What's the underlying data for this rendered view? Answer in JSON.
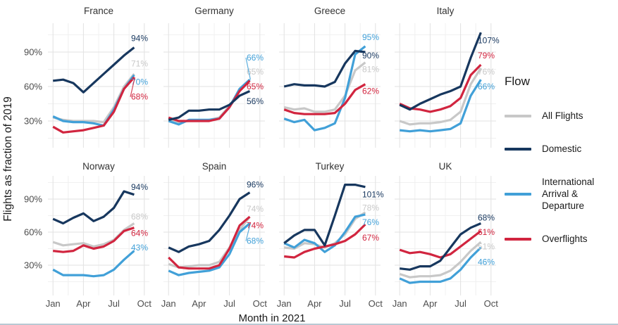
{
  "page": {
    "background": "#ffffff",
    "bottom_border_color": "#b9c9d3"
  },
  "legend": {
    "title": "Flow",
    "items": [
      {
        "label": "All Flights",
        "color": "#c8c8c8"
      },
      {
        "label": "Domestic",
        "color": "#17375e"
      },
      {
        "label": "International Arrival & Departure",
        "color": "#41a0d8"
      },
      {
        "label": "Overflights",
        "color": "#d1253f"
      }
    ]
  },
  "chart_data": {
    "type": "line",
    "title": "",
    "xlabel": "Month in 2021",
    "ylabel": "Flights as fraction of 2019",
    "x": [
      "Jan",
      "Feb",
      "Mar",
      "Apr",
      "May",
      "Jun",
      "Jul",
      "Aug",
      "Sep"
    ],
    "x_axis": {
      "tick_labels": [
        "Jan",
        "Apr",
        "Jul",
        "Oct"
      ],
      "tick_months": [
        1,
        4,
        7,
        10
      ],
      "domain": [
        0.5,
        10.5
      ]
    },
    "y_axis": {
      "tick_values": [
        30,
        60,
        90
      ],
      "tick_labels": [
        "30%",
        "60%",
        "90%"
      ],
      "unit": "% of 2019 flights"
    },
    "grid": true,
    "legend_position": "right",
    "facets": [
      {
        "name": "France",
        "series": [
          {
            "flow": "All Flights",
            "values": [
              33,
              31,
              30,
              30,
              30,
              29,
              42,
              60,
              71
            ],
            "end_label": "71%",
            "label_v": 80
          },
          {
            "flow": "International Arrival & Departure",
            "values": [
              34,
              30,
              29,
              29,
              28,
              26,
              40,
              58,
              70
            ],
            "end_label": "70%",
            "label_v": 64
          },
          {
            "flow": "Overflights",
            "values": [
              25,
              20,
              21,
              22,
              24,
              26,
              38,
              58,
              68
            ],
            "end_label": "68%",
            "label_v": 51,
            "leader": true
          },
          {
            "flow": "Domestic",
            "values": [
              65,
              66,
              63,
              55,
              63,
              71,
              79,
              87,
              94
            ],
            "end_label": "94%",
            "label_v": 102
          }
        ]
      },
      {
        "name": "Germany",
        "series": [
          {
            "flow": "All Flights",
            "values": [
              31,
              29,
              30,
              30,
              31,
              33,
              43,
              57,
              65
            ],
            "end_label": "65%",
            "label_v": 73
          },
          {
            "flow": "International Arrival & Departure",
            "values": [
              30,
              27,
              31,
              31,
              31,
              32,
              42,
              58,
              66
            ],
            "end_label": "66%",
            "label_v": 85,
            "leader": true
          },
          {
            "flow": "Overflights",
            "values": [
              33,
              30,
              30,
              30,
              30,
              32,
              42,
              56,
              65
            ],
            "end_label": "65%",
            "label_v": 60
          },
          {
            "flow": "Domestic",
            "values": [
              31,
              33,
              39,
              39,
              40,
              40,
              44,
              52,
              56
            ],
            "end_label": "56%",
            "label_v": 47
          }
        ]
      },
      {
        "name": "Greece",
        "series": [
          {
            "flow": "All Flights",
            "values": [
              42,
              40,
              41,
              38,
              38,
              40,
              52,
              74,
              81
            ],
            "end_label": "81%",
            "label_v": 75
          },
          {
            "flow": "International Arrival & Departure",
            "values": [
              32,
              29,
              31,
              22,
              24,
              28,
              50,
              88,
              95
            ],
            "end_label": "95%",
            "label_v": 103
          },
          {
            "flow": "Overflights",
            "values": [
              40,
              37,
              36,
              36,
              36,
              37,
              45,
              57,
              62
            ],
            "end_label": "62%",
            "label_v": 56
          },
          {
            "flow": "Domestic",
            "values": [
              60,
              62,
              61,
              61,
              60,
              64,
              80,
              91,
              90
            ],
            "end_label": "90%",
            "label_v": 87
          }
        ]
      },
      {
        "name": "Italy",
        "series": [
          {
            "flow": "All Flights",
            "values": [
              30,
              27,
              28,
              28,
              29,
              31,
              38,
              62,
              76
            ],
            "end_label": "76%",
            "label_v": 73
          },
          {
            "flow": "International Arrival & Departure",
            "values": [
              22,
              21,
              22,
              21,
              22,
              23,
              28,
              52,
              66
            ],
            "end_label": "66%",
            "label_v": 60
          },
          {
            "flow": "Overflights",
            "values": [
              45,
              41,
              40,
              38,
              40,
              43,
              50,
              70,
              79
            ],
            "end_label": "79%",
            "label_v": 87
          },
          {
            "flow": "Domestic",
            "values": [
              44,
              40,
              45,
              49,
              53,
              56,
              60,
              85,
              107
            ],
            "end_label": "107%",
            "label_v": 100
          }
        ]
      },
      {
        "name": "Norway",
        "series": [
          {
            "flow": "All Flights",
            "values": [
              51,
              48,
              49,
              50,
              47,
              49,
              53,
              62,
              68
            ],
            "end_label": "68%",
            "label_v": 74
          },
          {
            "flow": "International Arrival & Departure",
            "values": [
              26,
              21,
              21,
              21,
              20,
              21,
              26,
              35,
              43
            ],
            "end_label": "43%",
            "label_v": 46
          },
          {
            "flow": "Overflights",
            "values": [
              43,
              42,
              43,
              48,
              45,
              47,
              52,
              61,
              64
            ],
            "end_label": "64%",
            "label_v": 59
          },
          {
            "flow": "Domestic",
            "values": [
              72,
              68,
              73,
              77,
              70,
              74,
              82,
              97,
              94
            ],
            "end_label": "94%",
            "label_v": 101
          }
        ]
      },
      {
        "name": "Spain",
        "series": [
          {
            "flow": "All Flights",
            "values": [
              31,
              28,
              29,
              30,
              30,
              33,
              46,
              62,
              74
            ],
            "end_label": "74%",
            "label_v": 81
          },
          {
            "flow": "International Arrival & Departure",
            "values": [
              25,
              21,
              23,
              24,
              25,
              28,
              40,
              60,
              68
            ],
            "end_label": "68%",
            "label_v": 52,
            "leader": true
          },
          {
            "flow": "Overflights",
            "values": [
              37,
              28,
              27,
              27,
              27,
              30,
              45,
              66,
              74
            ],
            "end_label": "74%",
            "label_v": 66
          },
          {
            "flow": "Domestic",
            "values": [
              46,
              42,
              47,
              49,
              52,
              62,
              75,
              90,
              96
            ],
            "end_label": "96%",
            "label_v": 103
          }
        ]
      },
      {
        "name": "Turkey",
        "series": [
          {
            "flow": "All Flights",
            "values": [
              46,
              45,
              50,
              49,
              46,
              50,
              58,
              72,
              78
            ],
            "end_label": "78%",
            "label_v": 82
          },
          {
            "flow": "International Arrival & Departure",
            "values": [
              50,
              46,
              53,
              50,
              42,
              48,
              60,
              74,
              76
            ],
            "end_label": "76%",
            "label_v": 69
          },
          {
            "flow": "Overflights",
            "values": [
              38,
              37,
              42,
              45,
              47,
              49,
              52,
              58,
              67
            ],
            "end_label": "67%",
            "label_v": 55
          },
          {
            "flow": "Domestic",
            "values": [
              50,
              57,
              62,
              62,
              48,
              75,
              103,
              103,
              101
            ],
            "end_label": "101%",
            "label_v": 94
          }
        ]
      },
      {
        "name": "UK",
        "series": [
          {
            "flow": "All Flights",
            "values": [
              22,
              19,
              20,
              20,
              21,
              25,
              33,
              43,
              51
            ],
            "end_label": "51%",
            "label_v": 47
          },
          {
            "flow": "International Arrival & Departure",
            "values": [
              18,
              14,
              15,
              15,
              15,
              18,
              26,
              37,
              46
            ],
            "end_label": "46%",
            "label_v": 33
          },
          {
            "flow": "Overflights",
            "values": [
              44,
              41,
              42,
              40,
              37,
              40,
              47,
              54,
              61
            ],
            "end_label": "61%",
            "label_v": 60
          },
          {
            "flow": "Domestic",
            "values": [
              27,
              26,
              29,
              29,
              34,
              46,
              58,
              64,
              68
            ],
            "end_label": "68%",
            "label_v": 73
          }
        ]
      }
    ]
  }
}
